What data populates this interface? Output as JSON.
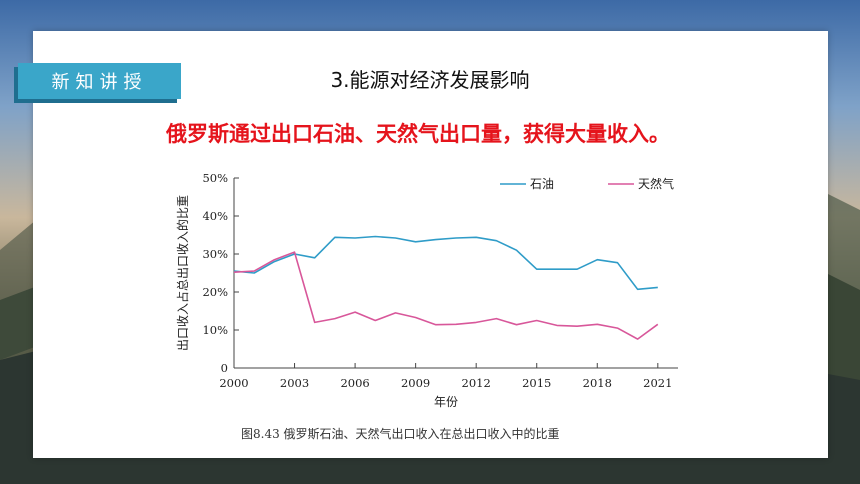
{
  "slide": {
    "badge": "新知讲授",
    "title": "3.能源对经济发展影响",
    "subtitle": "俄罗斯通过出口石油、天然气出口量，获得大量收入。",
    "caption": "图8.43  俄罗斯石油、天然气出口收入在总出口收入中的比重"
  },
  "colors": {
    "oil": "#2f9cc8",
    "gas": "#d8579a",
    "badge": "#3aa6c9",
    "subtitle": "#e5141c"
  },
  "chart_data": {
    "type": "line",
    "title": "",
    "xlabel": "年份",
    "ylabel": "出口收入占总出口收入的比重",
    "xlim": [
      2000,
      2022
    ],
    "ylim": [
      0,
      50
    ],
    "xticks": [
      2000,
      2003,
      2006,
      2009,
      2012,
      2015,
      2018,
      2021
    ],
    "xtick_labels": [
      "2000",
      "2003",
      "2006",
      "2009",
      "2012",
      "2015",
      "2018",
      "2021"
    ],
    "yticks": [
      0,
      10,
      20,
      30,
      40,
      50
    ],
    "ytick_labels": [
      "0",
      "10%",
      "20%",
      "30%",
      "40%",
      "50%"
    ],
    "legend_position": "top-right",
    "series": [
      {
        "name": "石油",
        "color": "#2f9cc8",
        "x": [
          2000,
          2001,
          2002,
          2003,
          2004,
          2005,
          2006,
          2007,
          2008,
          2009,
          2010,
          2011,
          2012,
          2013,
          2014,
          2015,
          2016,
          2017,
          2018,
          2019,
          2020,
          2021
        ],
        "y": [
          25.5,
          25,
          28,
          30,
          29,
          34.4,
          34.2,
          34.6,
          34.2,
          33.2,
          33.8,
          34.2,
          34.4,
          33.5,
          31,
          26,
          26,
          26,
          28.5,
          27.7,
          20.7,
          21.2
        ]
      },
      {
        "name": "天然气",
        "color": "#d8579a",
        "x": [
          2000,
          2001,
          2002,
          2003,
          2004,
          2005,
          2006,
          2007,
          2008,
          2009,
          2010,
          2011,
          2012,
          2013,
          2014,
          2015,
          2016,
          2017,
          2018,
          2019,
          2020,
          2021
        ],
        "y": [
          25.2,
          25.5,
          28.5,
          30.5,
          12,
          13,
          14.7,
          12.5,
          14.5,
          13.3,
          11.4,
          11.5,
          12,
          13,
          11.4,
          12.5,
          11.2,
          11,
          11.5,
          10.5,
          7.6,
          11.5
        ]
      }
    ]
  }
}
